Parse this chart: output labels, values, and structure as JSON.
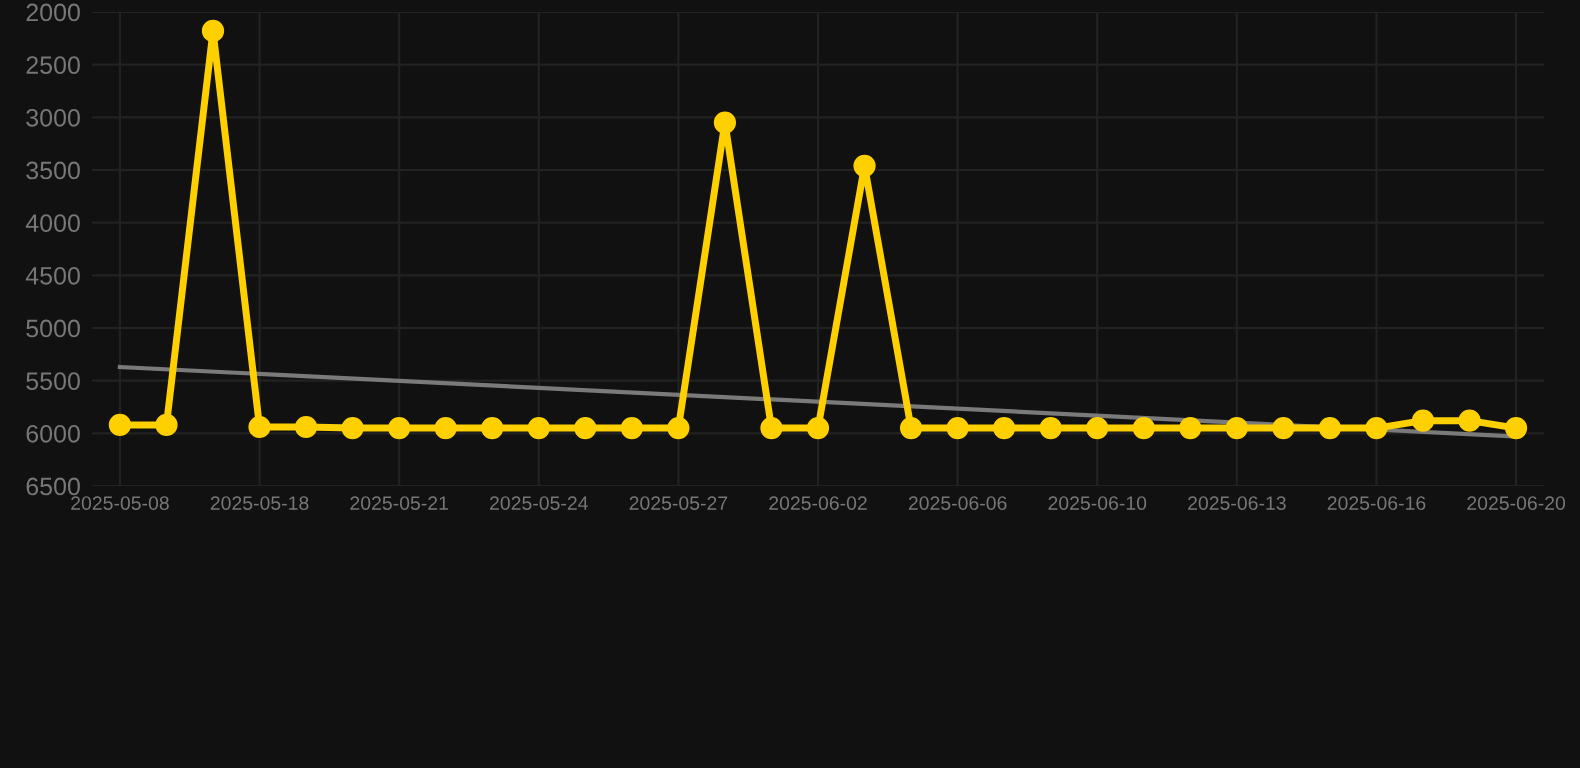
{
  "chart_data": {
    "type": "line",
    "categories": [
      "2025-05-08",
      null,
      null,
      "2025-05-18",
      null,
      null,
      "2025-05-21",
      null,
      null,
      "2025-05-24",
      null,
      null,
      "2025-05-27",
      null,
      null,
      "2025-06-02",
      null,
      null,
      "2025-06-06",
      null,
      null,
      "2025-06-10",
      null,
      null,
      "2025-06-13",
      null,
      null,
      "2025-06-16",
      null,
      null,
      "2025-06-20"
    ],
    "series": [
      {
        "color": "#ffd000",
        "marker": "circle",
        "values": [
          5920,
          5920,
          2180,
          5940,
          5940,
          5950,
          5950,
          5950,
          5950,
          5950,
          5950,
          5950,
          5950,
          3050,
          5950,
          5950,
          3460,
          5950,
          5950,
          5950,
          5950,
          5950,
          5950,
          5950,
          5950,
          5950,
          5950,
          5950,
          5880,
          5880,
          5950
        ]
      },
      {
        "type": "line",
        "color": "#7a7a7a",
        "marker": "none",
        "values": [
          5370,
          null,
          null,
          null,
          null,
          null,
          null,
          null,
          null,
          null,
          null,
          null,
          null,
          null,
          null,
          null,
          null,
          null,
          null,
          null,
          null,
          null,
          null,
          null,
          null,
          null,
          null,
          null,
          null,
          null,
          6030
        ]
      }
    ],
    "ylim": [
      6500,
      2000
    ],
    "yticks": [
      2000,
      2500,
      3000,
      3500,
      4000,
      4500,
      5000,
      5500,
      6000,
      6500
    ],
    "grid": true
  }
}
